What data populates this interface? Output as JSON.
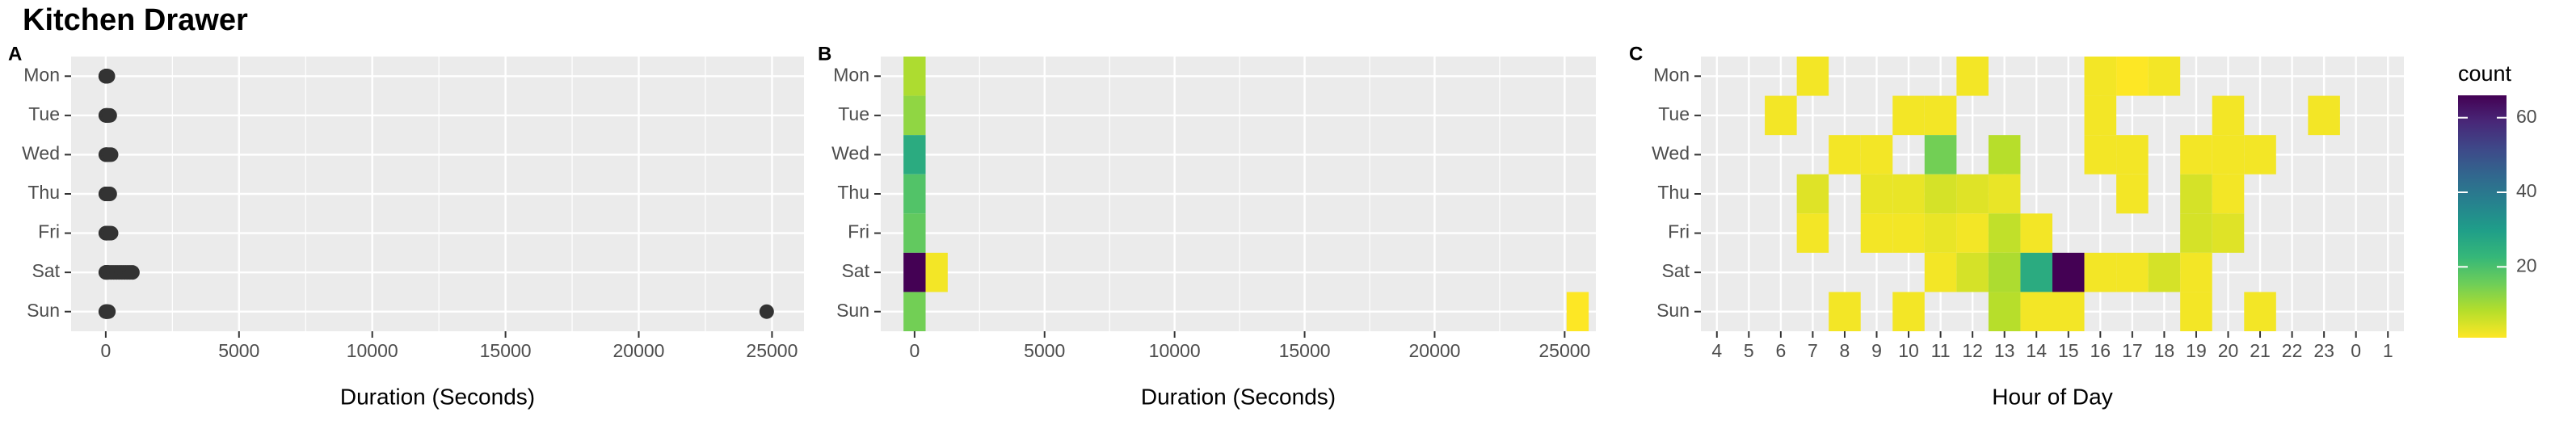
{
  "title": "Kitchen Drawer",
  "chart_data": [
    {
      "panel": "A",
      "type": "scatter",
      "xlabel": "Duration (Seconds)",
      "ylabel": "",
      "x_ticks": [
        0,
        5000,
        10000,
        15000,
        20000,
        25000
      ],
      "xlim": [
        -1300,
        26200
      ],
      "categories": [
        "Mon",
        "Tue",
        "Wed",
        "Thu",
        "Fri",
        "Sat",
        "Sun"
      ],
      "points": [
        {
          "day": "Mon",
          "x": [
            0,
            0,
            5,
            8,
            10,
            12,
            15,
            18,
            20,
            25,
            30,
            40,
            50,
            60,
            80
          ]
        },
        {
          "day": "Tue",
          "x": [
            0,
            10,
            20,
            30,
            40,
            60,
            80,
            100,
            150
          ]
        },
        {
          "day": "Wed",
          "x": [
            0,
            10,
            20,
            40,
            60,
            100,
            150,
            200
          ]
        },
        {
          "day": "Thu",
          "x": [
            0,
            10,
            20,
            40,
            60,
            100,
            150
          ]
        },
        {
          "day": "Fri",
          "x": [
            0,
            10,
            20,
            40,
            60,
            100,
            150,
            200
          ]
        },
        {
          "day": "Sat",
          "x": [
            0,
            10,
            30,
            60,
            100,
            200,
            300,
            400,
            500,
            600,
            700,
            800,
            900,
            1000
          ]
        },
        {
          "day": "Sun",
          "x": [
            0,
            10,
            20,
            40,
            60,
            100,
            24800
          ]
        }
      ],
      "point_color": "#333333",
      "grid": true
    },
    {
      "panel": "B",
      "type": "heatmap",
      "xlabel": "Duration (Seconds)",
      "ylabel": "",
      "x_ticks": [
        0,
        5000,
        10000,
        15000,
        20000,
        25000
      ],
      "xlim": [
        -1300,
        26200
      ],
      "bin_width": 850,
      "categories": [
        "Mon",
        "Tue",
        "Wed",
        "Thu",
        "Fri",
        "Sat",
        "Sun"
      ],
      "cells": [
        {
          "day": "Mon",
          "x": 0,
          "count": 9
        },
        {
          "day": "Tue",
          "x": 0,
          "count": 12
        },
        {
          "day": "Wed",
          "x": 0,
          "count": 26
        },
        {
          "day": "Thu",
          "x": 0,
          "count": 19
        },
        {
          "day": "Fri",
          "x": 0,
          "count": 17
        },
        {
          "day": "Sat",
          "x": 0,
          "count": 66
        },
        {
          "day": "Sat",
          "x": 850,
          "count": 2
        },
        {
          "day": "Sun",
          "x": 0,
          "count": 15
        },
        {
          "day": "Sun",
          "x": 25500,
          "count": 1
        }
      ],
      "grid": true
    },
    {
      "panel": "C",
      "type": "heatmap",
      "xlabel": "Hour of Day",
      "ylabel": "",
      "x_categories": [
        "4",
        "5",
        "6",
        "7",
        "8",
        "9",
        "10",
        "11",
        "12",
        "13",
        "14",
        "15",
        "16",
        "17",
        "18",
        "19",
        "20",
        "21",
        "22",
        "23",
        "0",
        "1"
      ],
      "categories": [
        "Mon",
        "Tue",
        "Wed",
        "Thu",
        "Fri",
        "Sat",
        "Sun"
      ],
      "cells": [
        {
          "day": "Mon",
          "hour": "7",
          "count": 2
        },
        {
          "day": "Mon",
          "hour": "12",
          "count": 2
        },
        {
          "day": "Mon",
          "hour": "16",
          "count": 2
        },
        {
          "day": "Mon",
          "hour": "17",
          "count": 1
        },
        {
          "day": "Mon",
          "hour": "18",
          "count": 2
        },
        {
          "day": "Tue",
          "hour": "6",
          "count": 2
        },
        {
          "day": "Tue",
          "hour": "10",
          "count": 2
        },
        {
          "day": "Tue",
          "hour": "11",
          "count": 2
        },
        {
          "day": "Tue",
          "hour": "16",
          "count": 2
        },
        {
          "day": "Tue",
          "hour": "20",
          "count": 2
        },
        {
          "day": "Tue",
          "hour": "23",
          "count": 2
        },
        {
          "day": "Wed",
          "hour": "8",
          "count": 2
        },
        {
          "day": "Wed",
          "hour": "9",
          "count": 2
        },
        {
          "day": "Wed",
          "hour": "11",
          "count": 15
        },
        {
          "day": "Wed",
          "hour": "13",
          "count": 8
        },
        {
          "day": "Wed",
          "hour": "16",
          "count": 2
        },
        {
          "day": "Wed",
          "hour": "17",
          "count": 2
        },
        {
          "day": "Wed",
          "hour": "19",
          "count": 2
        },
        {
          "day": "Wed",
          "hour": "20",
          "count": 2
        },
        {
          "day": "Wed",
          "hour": "21",
          "count": 2
        },
        {
          "day": "Thu",
          "hour": "7",
          "count": 4
        },
        {
          "day": "Thu",
          "hour": "9",
          "count": 3
        },
        {
          "day": "Thu",
          "hour": "10",
          "count": 3
        },
        {
          "day": "Thu",
          "hour": "11",
          "count": 5
        },
        {
          "day": "Thu",
          "hour": "12",
          "count": 4
        },
        {
          "day": "Thu",
          "hour": "13",
          "count": 3
        },
        {
          "day": "Thu",
          "hour": "17",
          "count": 2
        },
        {
          "day": "Thu",
          "hour": "19",
          "count": 5
        },
        {
          "day": "Thu",
          "hour": "20",
          "count": 2
        },
        {
          "day": "Fri",
          "hour": "7",
          "count": 2
        },
        {
          "day": "Fri",
          "hour": "9",
          "count": 2
        },
        {
          "day": "Fri",
          "hour": "10",
          "count": 2
        },
        {
          "day": "Fri",
          "hour": "11",
          "count": 3
        },
        {
          "day": "Fri",
          "hour": "12",
          "count": 2
        },
        {
          "day": "Fri",
          "hour": "13",
          "count": 7
        },
        {
          "day": "Fri",
          "hour": "14",
          "count": 2
        },
        {
          "day": "Fri",
          "hour": "19",
          "count": 5
        },
        {
          "day": "Fri",
          "hour": "20",
          "count": 4
        },
        {
          "day": "Sat",
          "hour": "11",
          "count": 2
        },
        {
          "day": "Sat",
          "hour": "12",
          "count": 5
        },
        {
          "day": "Sat",
          "hour": "13",
          "count": 9
        },
        {
          "day": "Sat",
          "hour": "14",
          "count": 26
        },
        {
          "day": "Sat",
          "hour": "15",
          "count": 66
        },
        {
          "day": "Sat",
          "hour": "16",
          "count": 2
        },
        {
          "day": "Sat",
          "hour": "17",
          "count": 2
        },
        {
          "day": "Sat",
          "hour": "18",
          "count": 5
        },
        {
          "day": "Sat",
          "hour": "19",
          "count": 2
        },
        {
          "day": "Sun",
          "hour": "8",
          "count": 2
        },
        {
          "day": "Sun",
          "hour": "10",
          "count": 2
        },
        {
          "day": "Sun",
          "hour": "13",
          "count": 8
        },
        {
          "day": "Sun",
          "hour": "14",
          "count": 2
        },
        {
          "day": "Sun",
          "hour": "15",
          "count": 2
        },
        {
          "day": "Sun",
          "hour": "19",
          "count": 2
        },
        {
          "day": "Sun",
          "hour": "21",
          "count": 2
        }
      ],
      "grid": true
    }
  ],
  "legend": {
    "title": "count",
    "ticks": [
      20,
      40,
      60
    ],
    "range": [
      1,
      66
    ],
    "placement": "right",
    "palette": [
      "#fde725",
      "#b5de2b",
      "#6ece58",
      "#35b779",
      "#1f9e89",
      "#26828e",
      "#31688e",
      "#3e4989",
      "#482878",
      "#440154"
    ]
  },
  "colors": {
    "panel_background": "#ebebeb",
    "grid": "#ffffff",
    "point": "#333333",
    "axis_text": "#4d4d4d"
  }
}
